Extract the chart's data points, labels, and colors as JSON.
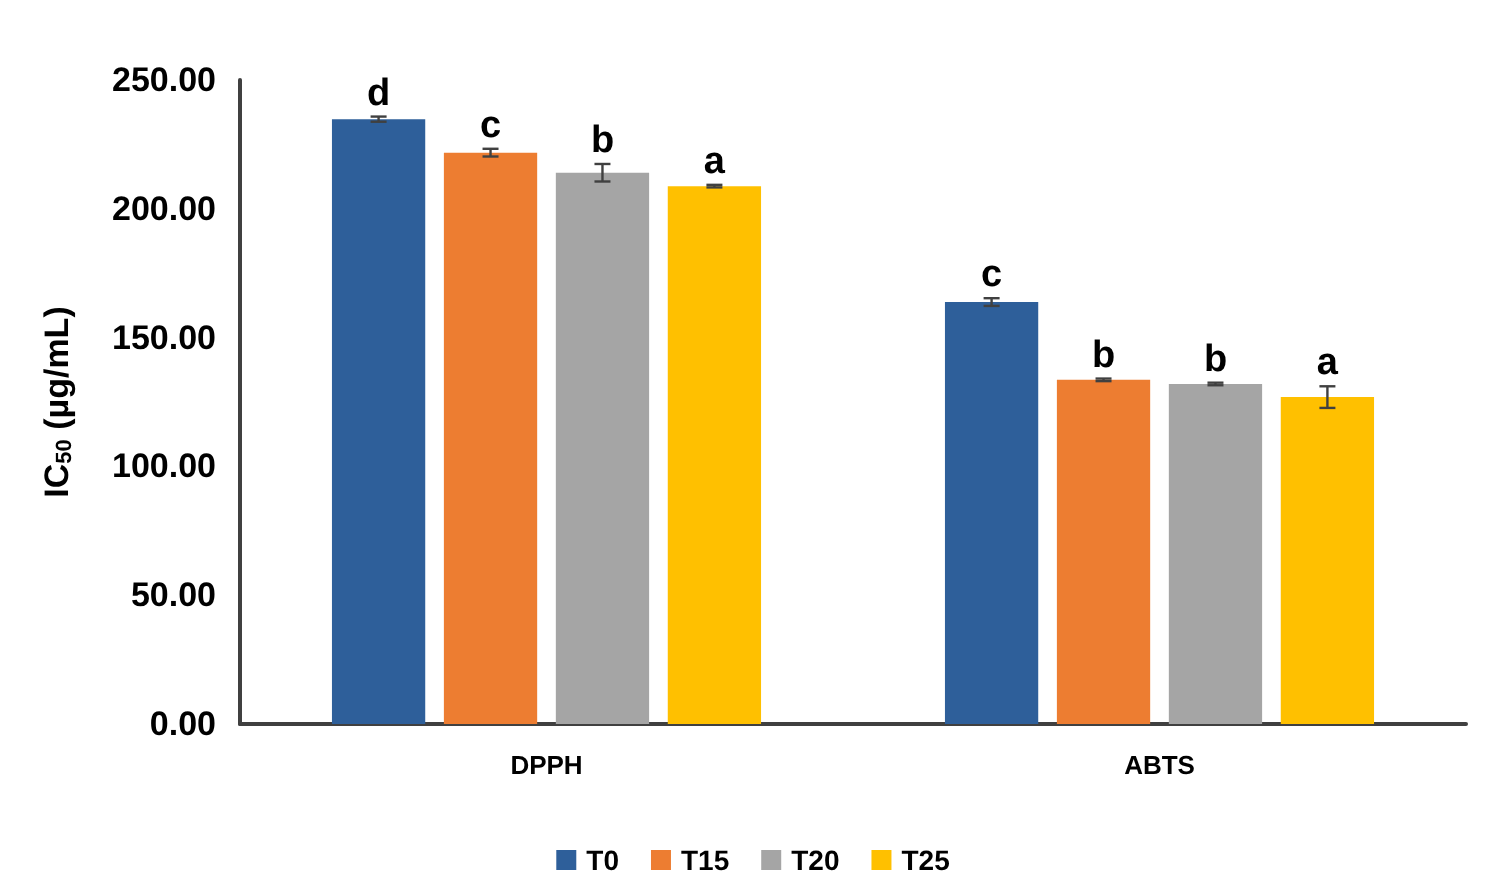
{
  "chart_data": {
    "type": "bar",
    "ylabel": "IC$_{50}$ (µg/mL)",
    "categories": [
      "DPPH",
      "ABTS"
    ],
    "series": [
      {
        "name": "T0",
        "color": "#2e5f9a",
        "values": [
          234.8,
          163.8
        ],
        "errors": [
          1,
          1.5
        ],
        "value_labels": [
          "d",
          "c"
        ]
      },
      {
        "name": "T15",
        "color": "#ed7d31",
        "values": [
          221.8,
          133.6
        ],
        "errors": [
          1.5,
          0.5
        ],
        "value_labels": [
          "c",
          "b"
        ]
      },
      {
        "name": "T20",
        "color": "#a5a5a5",
        "values": [
          214.0,
          132.0
        ],
        "errors": [
          3.4,
          0.5
        ],
        "value_labels": [
          "b",
          "b"
        ]
      },
      {
        "name": "T25",
        "color": "#ffc000",
        "values": [
          208.8,
          126.9
        ],
        "errors": [
          0.5,
          4.2
        ],
        "value_labels": [
          "a",
          "a"
        ]
      }
    ],
    "ylim": [
      0,
      250
    ],
    "yticks": [
      {
        "value": 0,
        "label": "0.00"
      },
      {
        "value": 50,
        "label": "50.00"
      },
      {
        "value": 100,
        "label": "100.00"
      },
      {
        "value": 150,
        "label": "150.00"
      },
      {
        "value": 200,
        "label": "200.00"
      },
      {
        "value": 250,
        "label": "250.00"
      }
    ],
    "grid": false,
    "legend": "bottom"
  }
}
